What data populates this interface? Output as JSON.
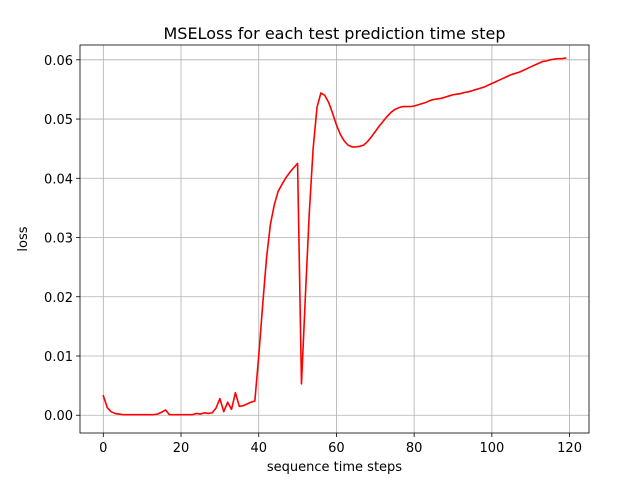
{
  "chart_data": {
    "type": "line",
    "title": "MSELoss for each test prediction time step",
    "xlabel": "sequence time steps",
    "ylabel": "loss",
    "xlim": [
      -6,
      125
    ],
    "ylim": [
      -0.003,
      0.0625
    ],
    "xticks": [
      0,
      20,
      40,
      60,
      80,
      100,
      120
    ],
    "xtick_labels": [
      "0",
      "20",
      "40",
      "60",
      "80",
      "100",
      "120"
    ],
    "yticks": [
      0.0,
      0.01,
      0.02,
      0.03,
      0.04,
      0.05,
      0.06
    ],
    "ytick_labels": [
      "0.00",
      "0.01",
      "0.02",
      "0.03",
      "0.04",
      "0.05",
      "0.06"
    ],
    "grid": true,
    "series": [
      {
        "color": "#ff0000",
        "x": [
          0,
          1,
          2,
          3,
          4,
          5,
          6,
          7,
          8,
          9,
          10,
          11,
          12,
          13,
          14,
          15,
          16,
          17,
          18,
          19,
          20,
          21,
          22,
          23,
          24,
          25,
          26,
          27,
          28,
          29,
          30,
          31,
          32,
          33,
          34,
          35,
          36,
          37,
          38,
          39,
          40,
          41,
          42,
          43,
          44,
          45,
          46,
          47,
          48,
          49,
          50,
          51,
          52,
          53,
          54,
          55,
          56,
          57,
          58,
          59,
          60,
          61,
          62,
          63,
          64,
          65,
          66,
          67,
          68,
          69,
          70,
          71,
          72,
          73,
          74,
          75,
          76,
          77,
          78,
          79,
          80,
          81,
          82,
          83,
          84,
          85,
          86,
          87,
          88,
          89,
          90,
          91,
          92,
          93,
          94,
          95,
          96,
          97,
          98,
          99,
          100,
          101,
          102,
          103,
          104,
          105,
          106,
          107,
          108,
          109,
          110,
          111,
          112,
          113,
          114,
          115,
          116,
          117,
          118,
          119
        ],
        "y": [
          0.0033,
          0.0013,
          0.0006,
          0.0003,
          0.0002,
          0.0001,
          0.0001,
          0.0001,
          0.0001,
          0.0001,
          0.0001,
          0.0001,
          0.0001,
          0.0001,
          0.0002,
          0.0005,
          0.0009,
          0.0001,
          0.0001,
          0.0001,
          0.0001,
          0.0001,
          0.0001,
          0.0001,
          0.0003,
          0.0002,
          0.0004,
          0.0003,
          0.0004,
          0.0012,
          0.0028,
          0.0006,
          0.0022,
          0.001,
          0.0038,
          0.0015,
          0.0016,
          0.0019,
          0.0022,
          0.0024,
          0.01,
          0.0185,
          0.0265,
          0.0322,
          0.0355,
          0.0378,
          0.039,
          0.0401,
          0.041,
          0.0418,
          0.0425,
          0.0053,
          0.02,
          0.034,
          0.045,
          0.052,
          0.0544,
          0.054,
          0.0528,
          0.051,
          0.049,
          0.0474,
          0.0463,
          0.0456,
          0.0453,
          0.0453,
          0.0454,
          0.0456,
          0.0462,
          0.047,
          0.0479,
          0.0488,
          0.0496,
          0.0504,
          0.0511,
          0.0516,
          0.0519,
          0.0521,
          0.0521,
          0.0521,
          0.0522,
          0.0524,
          0.0526,
          0.0528,
          0.0531,
          0.0533,
          0.0534,
          0.0535,
          0.0537,
          0.0539,
          0.0541,
          0.0542,
          0.0543,
          0.0545,
          0.0546,
          0.0548,
          0.055,
          0.0552,
          0.0554,
          0.0557,
          0.056,
          0.0563,
          0.0566,
          0.0569,
          0.0572,
          0.0575,
          0.0577,
          0.0579,
          0.0582,
          0.0585,
          0.0588,
          0.0591,
          0.0594,
          0.0597,
          0.0598,
          0.06,
          0.0601,
          0.0602,
          0.0602,
          0.0603
        ]
      }
    ]
  }
}
